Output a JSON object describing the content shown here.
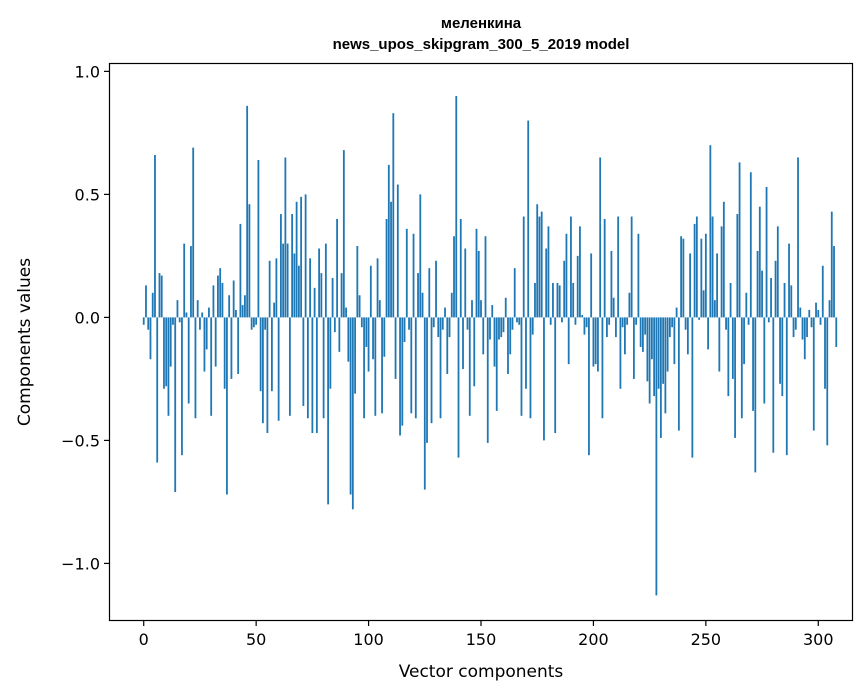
{
  "chart_data": {
    "type": "bar",
    "title_line1": "меленкина",
    "title_line2": "news_upos_skipgram_300_5_2019 model",
    "xlabel": "Vector components",
    "ylabel": "Components values",
    "xlim": [
      -15,
      315
    ],
    "ylim": [
      -1.23,
      1.03
    ],
    "x_ticks": [
      0,
      50,
      100,
      150,
      200,
      250,
      300
    ],
    "y_ticks": [
      -1.0,
      -0.5,
      0.0,
      0.5,
      1.0
    ],
    "x_tick_labels": [
      "0",
      "50",
      "100",
      "150",
      "200",
      "250",
      "300"
    ],
    "y_tick_labels": [
      "−1.0",
      "−0.5",
      "0.0",
      "0.5",
      "1.0"
    ],
    "bar_color": "#1f77b4",
    "grid": false,
    "values": [
      -0.03,
      0.13,
      -0.05,
      -0.17,
      0.1,
      0.66,
      -0.59,
      0.18,
      0.17,
      -0.29,
      -0.28,
      -0.4,
      -0.2,
      -0.03,
      -0.71,
      0.07,
      -0.02,
      -0.56,
      0.3,
      0.02,
      -0.35,
      0.29,
      0.69,
      -0.41,
      0.07,
      -0.05,
      0.02,
      -0.22,
      -0.13,
      0.04,
      -0.4,
      0.13,
      -0.2,
      0.17,
      0.2,
      0.14,
      -0.29,
      -0.72,
      0.09,
      -0.25,
      0.15,
      0.03,
      -0.23,
      0.38,
      0.05,
      0.09,
      0.86,
      0.46,
      -0.05,
      -0.04,
      -0.03,
      0.64,
      -0.3,
      -0.43,
      -0.05,
      -0.47,
      0.23,
      -0.3,
      0.06,
      0.24,
      -0.42,
      0.42,
      0.3,
      0.65,
      0.3,
      -0.4,
      0.42,
      0.26,
      0.47,
      0.21,
      0.49,
      -0.36,
      0.5,
      -0.41,
      0.24,
      -0.47,
      0.12,
      -0.47,
      0.28,
      0.18,
      -0.41,
      0.3,
      -0.76,
      -0.29,
      0.16,
      -0.06,
      0.4,
      -0.14,
      0.18,
      0.68,
      0.04,
      -0.18,
      -0.72,
      -0.78,
      -0.31,
      0.29,
      0.09,
      -0.04,
      -0.41,
      -0.12,
      -0.22,
      0.21,
      -0.17,
      -0.4,
      0.24,
      0.07,
      -0.39,
      -0.16,
      0.4,
      0.62,
      0.47,
      0.83,
      -0.25,
      0.54,
      -0.48,
      -0.44,
      -0.1,
      0.36,
      -0.05,
      -0.39,
      0.34,
      -0.41,
      0.18,
      0.5,
      0.1,
      -0.7,
      -0.51,
      0.2,
      -0.43,
      -0.04,
      0.23,
      -0.08,
      -0.41,
      -0.05,
      0.04,
      -0.23,
      -0.08,
      0.1,
      0.33,
      0.9,
      -0.57,
      0.4,
      -0.21,
      0.28,
      -0.05,
      -0.4,
      0.07,
      -0.28,
      0.36,
      0.27,
      0.07,
      -0.15,
      0.33,
      -0.51,
      -0.09,
      0.05,
      -0.2,
      -0.38,
      -0.09,
      -0.08,
      -0.06,
      0.08,
      -0.23,
      -0.15,
      -0.05,
      0.2,
      -0.02,
      -0.03,
      -0.4,
      0.41,
      -0.29,
      0.8,
      -0.41,
      -0.07,
      0.14,
      0.46,
      0.41,
      0.43,
      -0.5,
      0.28,
      0.37,
      -0.03,
      0.14,
      -0.47,
      0.14,
      0.13,
      -0.02,
      0.23,
      0.34,
      -0.19,
      0.41,
      0.14,
      -0.03,
      0.25,
      0.37,
      0.01,
      -0.07,
      -0.04,
      -0.56,
      0.26,
      -0.2,
      -0.19,
      -0.22,
      0.65,
      -0.41,
      0.4,
      -0.08,
      -0.03,
      0.27,
      0.08,
      -0.08,
      0.41,
      -0.29,
      -0.04,
      -0.15,
      -0.03,
      0.1,
      0.41,
      -0.25,
      -0.03,
      0.34,
      -0.12,
      -0.14,
      -0.07,
      -0.26,
      -0.35,
      -0.17,
      -0.32,
      -1.13,
      -0.29,
      -0.49,
      -0.27,
      -0.39,
      -0.22,
      -0.08,
      -0.04,
      -0.19,
      0.04,
      -0.46,
      0.33,
      0.32,
      -0.05,
      -0.15,
      0.26,
      -0.57,
      0.38,
      0.41,
      -0.01,
      0.32,
      0.11,
      0.34,
      -0.13,
      0.7,
      0.41,
      0.07,
      0.26,
      -0.22,
      0.37,
      0.47,
      -0.05,
      -0.32,
      0.14,
      -0.25,
      -0.49,
      0.42,
      0.63,
      -0.41,
      -0.19,
      0.1,
      -0.03,
      0.59,
      -0.38,
      -0.63,
      0.27,
      0.45,
      0.19,
      -0.35,
      0.53,
      -0.02,
      0.16,
      -0.55,
      0.23,
      0.37,
      -0.27,
      -0.32,
      0.14,
      -0.56,
      0.3,
      0.13,
      -0.08,
      -0.05,
      0.65,
      0.04,
      -0.09,
      -0.17,
      -0.08,
      0.03,
      -0.04,
      -0.46,
      0.06,
      0.03,
      -0.03,
      0.21,
      -0.29,
      -0.52,
      0.07,
      0.43,
      0.29,
      -0.12
    ]
  }
}
